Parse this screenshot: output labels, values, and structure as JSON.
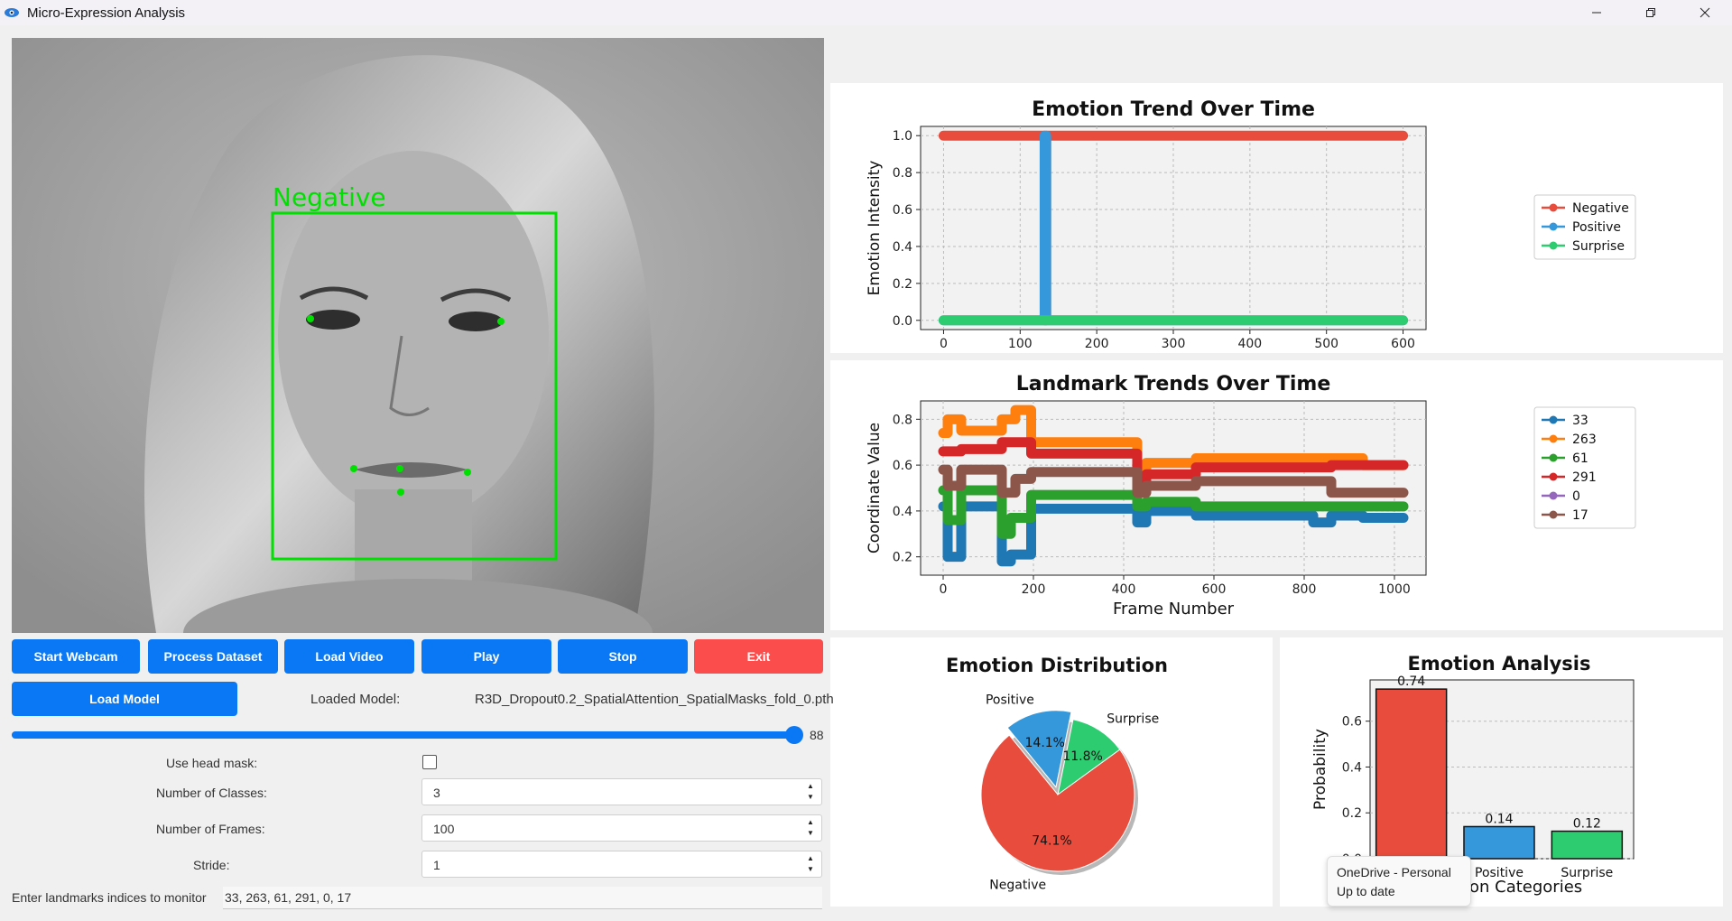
{
  "window": {
    "title": "Micro-Expression Analysis",
    "minimize_icon": "minimize-icon",
    "restore_icon": "restore-icon",
    "close_icon": "close-icon"
  },
  "video": {
    "face_label": "Negative",
    "box_color": "#00e000",
    "landmark_color": "#00e000"
  },
  "buttons": {
    "start_webcam": "Start Webcam",
    "process_dataset": "Process Dataset",
    "load_video": "Load Video",
    "play": "Play",
    "stop": "Stop",
    "exit": "Exit",
    "load_model": "Load Model"
  },
  "model": {
    "loaded_label": "Loaded Model:",
    "name": "R3D_Dropout0.2_SpatialAttention_SpatialMasks_fold_0.pth"
  },
  "slider": {
    "value": "88",
    "fraction": 0.99
  },
  "settings": {
    "head_mask_label": "Use head mask:",
    "head_mask_checked": false,
    "classes_label": "Number of Classes:",
    "classes_value": "3",
    "frames_label": "Number of Frames:",
    "frames_value": "100",
    "stride_label": "Stride:",
    "stride_value": "1",
    "landmarks_label": "Enter landmarks indices to monitor",
    "landmarks_value": "33, 263, 61, 291, 0, 17"
  },
  "colors": {
    "accent": "#0a78f5",
    "exit": "#fc4d4d",
    "negative": "#e74c3c",
    "positive": "#3498db",
    "surprise": "#2ecc71"
  },
  "chart_data": [
    {
      "type": "line",
      "title": "Emotion Trend Over Time",
      "ylabel": "Emotion Intensity",
      "xlim": [
        -30,
        630
      ],
      "ylim": [
        -0.05,
        1.05
      ],
      "xticks": [
        "0",
        "100",
        "200",
        "300",
        "400",
        "500",
        "600"
      ],
      "yticks": [
        "0.0",
        "0.2",
        "0.4",
        "0.6",
        "0.8",
        "1.0"
      ],
      "legend": "right",
      "grid": true,
      "series": [
        {
          "name": "Negative",
          "color": "#e74c3c",
          "x": [
            0,
            132,
            132,
            134,
            134,
            600
          ],
          "y": [
            1,
            1,
            0,
            0,
            1,
            1
          ]
        },
        {
          "name": "Positive",
          "color": "#3498db",
          "x": [
            0,
            132,
            132,
            134,
            134,
            600
          ],
          "y": [
            0,
            0,
            1,
            1,
            0,
            0
          ]
        },
        {
          "name": "Surprise",
          "color": "#2ecc71",
          "x": [
            0,
            600
          ],
          "y": [
            0,
            0
          ]
        }
      ]
    },
    {
      "type": "line",
      "title": "Landmark Trends Over Time",
      "xlabel": "Frame Number",
      "ylabel": "Coordinate Value",
      "xlim": [
        -50,
        1070
      ],
      "ylim": [
        0.12,
        0.88
      ],
      "xticks": [
        "0",
        "200",
        "400",
        "600",
        "800",
        "1000"
      ],
      "yticks": [
        "0.2",
        "0.4",
        "0.6",
        "0.8"
      ],
      "legend": "right",
      "grid": true,
      "series": [
        {
          "name": "33",
          "color": "#1f77b4",
          "x": [
            0,
            10,
            10,
            40,
            40,
            130,
            130,
            150,
            150,
            195,
            195,
            430,
            430,
            450,
            450,
            560,
            560,
            820,
            820,
            860,
            860,
            930,
            930,
            1020
          ],
          "y": [
            0.42,
            0.42,
            0.2,
            0.2,
            0.42,
            0.42,
            0.18,
            0.18,
            0.21,
            0.21,
            0.41,
            0.41,
            0.35,
            0.35,
            0.4,
            0.4,
            0.38,
            0.38,
            0.35,
            0.35,
            0.38,
            0.38,
            0.37,
            0.37
          ]
        },
        {
          "name": "263",
          "color": "#ff7f0e",
          "x": [
            0,
            10,
            10,
            40,
            40,
            130,
            130,
            160,
            160,
            195,
            195,
            430,
            430,
            450,
            450,
            560,
            560,
            930,
            930,
            1020
          ],
          "y": [
            0.74,
            0.74,
            0.8,
            0.8,
            0.75,
            0.75,
            0.8,
            0.8,
            0.84,
            0.84,
            0.7,
            0.7,
            0.58,
            0.58,
            0.61,
            0.61,
            0.63,
            0.63,
            0.6,
            0.6
          ]
        },
        {
          "name": "61",
          "color": "#2ca02c",
          "x": [
            0,
            10,
            10,
            40,
            40,
            130,
            130,
            150,
            150,
            195,
            195,
            430,
            430,
            450,
            450,
            560,
            560,
            1020
          ],
          "y": [
            0.49,
            0.49,
            0.36,
            0.36,
            0.49,
            0.49,
            0.3,
            0.3,
            0.37,
            0.37,
            0.47,
            0.47,
            0.42,
            0.42,
            0.44,
            0.44,
            0.42,
            0.42
          ]
        },
        {
          "name": "291",
          "color": "#d62728",
          "x": [
            0,
            40,
            40,
            130,
            130,
            195,
            195,
            430,
            430,
            450,
            450,
            560,
            560,
            860,
            860,
            1020
          ],
          "y": [
            0.66,
            0.66,
            0.67,
            0.67,
            0.7,
            0.7,
            0.65,
            0.65,
            0.52,
            0.52,
            0.56,
            0.56,
            0.59,
            0.59,
            0.6,
            0.6
          ]
        },
        {
          "name": "0",
          "color": "#9467bd",
          "x": [],
          "y": []
        },
        {
          "name": "17",
          "color": "#8c564b",
          "x": [
            0,
            10,
            10,
            40,
            40,
            130,
            130,
            160,
            160,
            195,
            195,
            430,
            430,
            450,
            450,
            560,
            560,
            860,
            860,
            1020
          ],
          "y": [
            0.58,
            0.58,
            0.51,
            0.51,
            0.58,
            0.58,
            0.48,
            0.48,
            0.54,
            0.54,
            0.57,
            0.57,
            0.48,
            0.48,
            0.51,
            0.51,
            0.53,
            0.53,
            0.48,
            0.48
          ]
        }
      ]
    },
    {
      "type": "pie",
      "title": "Emotion Distribution",
      "labels": [
        "Negative",
        "Positive",
        "Surprise"
      ],
      "values": [
        74.1,
        14.1,
        11.8
      ],
      "value_labels": [
        "74.1%",
        "14.1%",
        "11.8%"
      ],
      "colors": [
        "#e74c3c",
        "#3498db",
        "#2ecc71"
      ],
      "explode": [
        0,
        0.1,
        0
      ]
    },
    {
      "type": "bar",
      "title": "Emotion Analysis",
      "xlabel": "on Categories",
      "ylabel": "Probability",
      "categories": [
        "Negative",
        "Positive",
        "Surprise"
      ],
      "values": [
        0.74,
        0.14,
        0.12
      ],
      "value_labels": [
        "0.74",
        "0.14",
        "0.12"
      ],
      "colors": [
        "#e74c3c",
        "#3498db",
        "#2ecc71"
      ],
      "ylim": [
        0,
        0.78
      ],
      "yticks": [
        "0.0",
        "0.2",
        "0.4",
        "0.6"
      ],
      "grid": true
    }
  ],
  "tooltip": {
    "line1": "OneDrive - Personal",
    "line2": "Up to date"
  }
}
